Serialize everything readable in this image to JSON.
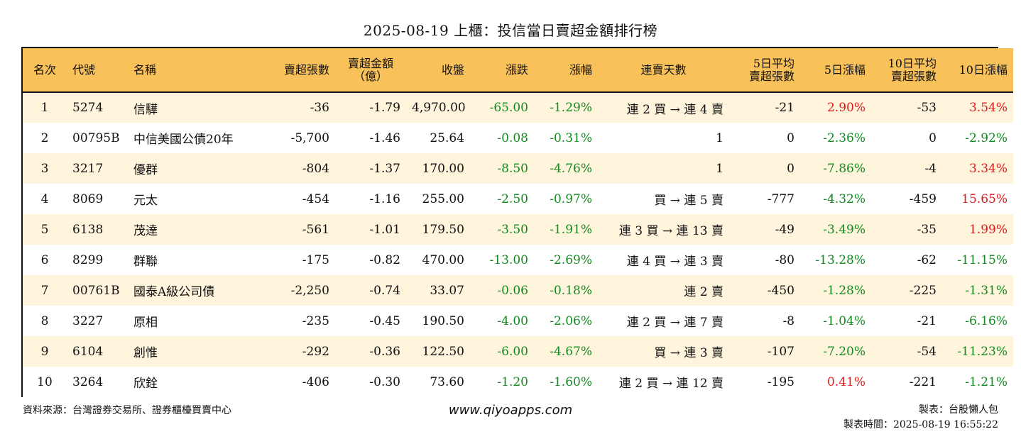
{
  "title": "2025-08-19 上櫃：投信當日賣超金額排行榜",
  "headers": {
    "rank": "名次",
    "code": "代號",
    "name": "名稱",
    "sell_shares": "賣超張數",
    "sell_amount_l1": "賣超金額",
    "sell_amount_l2": "（億）",
    "close": "收盤",
    "change": "漲跌",
    "pct": "漲幅",
    "streak": "連賣天數",
    "avg5_l1": "5日平均",
    "avg5_l2": "賣超張數",
    "pct5": "5日漲幅",
    "avg10_l1": "10日平均",
    "avg10_l2": "賣超張數",
    "pct10": "10日漲幅"
  },
  "rows": [
    {
      "rank": "1",
      "code": "5274",
      "name": "信驊",
      "sell_shares": "-36",
      "sell_amount": "-1.79",
      "close": "4,970.00",
      "change": "-65.00",
      "pct": "-1.29%",
      "streak": "連 2 買 → 連 4 賣",
      "avg5": "-21",
      "pct5": "2.90%",
      "avg10": "-53",
      "pct10": "3.54%"
    },
    {
      "rank": "2",
      "code": "00795B",
      "name": "中信美國公債20年",
      "sell_shares": "-5,700",
      "sell_amount": "-1.46",
      "close": "25.64",
      "change": "-0.08",
      "pct": "-0.31%",
      "streak": "1",
      "avg5": "0",
      "pct5": "-2.36%",
      "avg10": "0",
      "pct10": "-2.92%"
    },
    {
      "rank": "3",
      "code": "3217",
      "name": "優群",
      "sell_shares": "-804",
      "sell_amount": "-1.37",
      "close": "170.00",
      "change": "-8.50",
      "pct": "-4.76%",
      "streak": "1",
      "avg5": "0",
      "pct5": "-7.86%",
      "avg10": "-4",
      "pct10": "3.34%"
    },
    {
      "rank": "4",
      "code": "8069",
      "name": "元太",
      "sell_shares": "-454",
      "sell_amount": "-1.16",
      "close": "255.00",
      "change": "-2.50",
      "pct": "-0.97%",
      "streak": "買 → 連 5 賣",
      "avg5": "-777",
      "pct5": "-4.32%",
      "avg10": "-459",
      "pct10": "15.65%"
    },
    {
      "rank": "5",
      "code": "6138",
      "name": "茂達",
      "sell_shares": "-561",
      "sell_amount": "-1.01",
      "close": "179.50",
      "change": "-3.50",
      "pct": "-1.91%",
      "streak": "連 3 買 → 連 13 賣",
      "avg5": "-49",
      "pct5": "-3.49%",
      "avg10": "-35",
      "pct10": "1.99%"
    },
    {
      "rank": "6",
      "code": "8299",
      "name": "群聯",
      "sell_shares": "-175",
      "sell_amount": "-0.82",
      "close": "470.00",
      "change": "-13.00",
      "pct": "-2.69%",
      "streak": "連 4 買 → 連 3 賣",
      "avg5": "-80",
      "pct5": "-13.28%",
      "avg10": "-62",
      "pct10": "-11.15%"
    },
    {
      "rank": "7",
      "code": "00761B",
      "name": "國泰A級公司債",
      "sell_shares": "-2,250",
      "sell_amount": "-0.74",
      "close": "33.07",
      "change": "-0.06",
      "pct": "-0.18%",
      "streak": "連 2 賣",
      "avg5": "-450",
      "pct5": "-1.28%",
      "avg10": "-225",
      "pct10": "-1.31%"
    },
    {
      "rank": "8",
      "code": "3227",
      "name": "原相",
      "sell_shares": "-235",
      "sell_amount": "-0.45",
      "close": "190.50",
      "change": "-4.00",
      "pct": "-2.06%",
      "streak": "連 2 買 → 連 7 賣",
      "avg5": "-8",
      "pct5": "-1.04%",
      "avg10": "-21",
      "pct10": "-6.16%"
    },
    {
      "rank": "9",
      "code": "6104",
      "name": "創惟",
      "sell_shares": "-292",
      "sell_amount": "-0.36",
      "close": "122.50",
      "change": "-6.00",
      "pct": "-4.67%",
      "streak": "買 → 連 3 賣",
      "avg5": "-107",
      "pct5": "-7.20%",
      "avg10": "-54",
      "pct10": "-11.23%"
    },
    {
      "rank": "10",
      "code": "3264",
      "name": "欣銓",
      "sell_shares": "-406",
      "sell_amount": "-0.30",
      "close": "73.60",
      "change": "-1.20",
      "pct": "-1.60%",
      "streak": "連 2 買 → 連 12 賣",
      "avg5": "-195",
      "pct5": "0.41%",
      "avg10": "-221",
      "pct10": "-1.21%"
    }
  ],
  "footer": {
    "source": "資料來源：台灣證券交易所、證券櫃檯買賣中心",
    "website": "www.qiyoapps.com",
    "maker": "製表：台股懶人包",
    "time": "製表時間：2025-08-19 16:55:22"
  },
  "colors": {
    "header_bg": "#f8c15a",
    "row_alt_bg": "#fff4dc",
    "negative": "#118a1f",
    "positive": "#e01a1a"
  }
}
